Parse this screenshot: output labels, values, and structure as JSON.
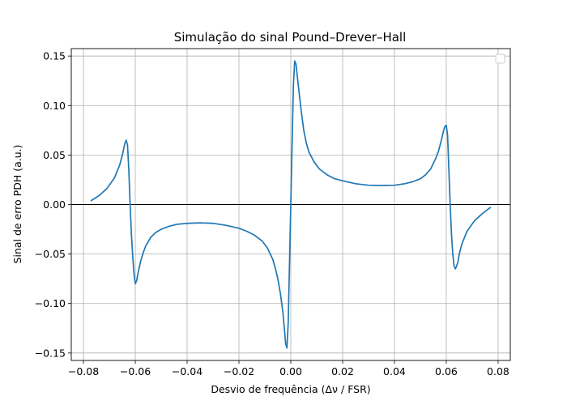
{
  "chart_data": {
    "type": "line",
    "title": "Simulação do sinal Pound–Drever–Hall",
    "xlabel": "Desvio de frequência (Δν / FSR)",
    "ylabel": "Sinal de erro PDH (a.u.)",
    "xlim": [
      -0.0847,
      0.0847
    ],
    "ylim": [
      -0.1575,
      0.1575
    ],
    "grid": true,
    "legend": "top-right",
    "legend_entries": [],
    "zero_line": true,
    "series_color": "#1f77b4",
    "x_ticks": [
      {
        "value": -0.08,
        "label": "−0.08"
      },
      {
        "value": -0.06,
        "label": "−0.06"
      },
      {
        "value": -0.04,
        "label": "−0.04"
      },
      {
        "value": -0.02,
        "label": "−0.02"
      },
      {
        "value": 0.0,
        "label": "0.00"
      },
      {
        "value": 0.02,
        "label": "0.02"
      },
      {
        "value": 0.04,
        "label": "0.04"
      },
      {
        "value": 0.06,
        "label": "0.06"
      },
      {
        "value": 0.08,
        "label": "0.08"
      }
    ],
    "y_ticks": [
      {
        "value": -0.15,
        "label": "−0.15"
      },
      {
        "value": -0.1,
        "label": "−0.10"
      },
      {
        "value": -0.05,
        "label": "−0.05"
      },
      {
        "value": 0.0,
        "label": "0.00"
      },
      {
        "value": 0.05,
        "label": "0.05"
      },
      {
        "value": 0.1,
        "label": "0.10"
      },
      {
        "value": 0.15,
        "label": "0.15"
      }
    ],
    "series": [
      {
        "x": [
          -0.077,
          -0.074,
          -0.071,
          -0.068,
          -0.066,
          -0.065,
          -0.0645,
          -0.064,
          -0.0635,
          -0.063,
          -0.0625,
          -0.062,
          -0.0615,
          -0.061,
          -0.0605,
          -0.06,
          -0.0595,
          -0.059,
          -0.058,
          -0.057,
          -0.056,
          -0.054,
          -0.052,
          -0.05,
          -0.047,
          -0.044,
          -0.04,
          -0.035,
          -0.03,
          -0.025,
          -0.02,
          -0.017,
          -0.014,
          -0.011,
          -0.009,
          -0.007,
          -0.006,
          -0.005,
          -0.004,
          -0.003,
          -0.0025,
          -0.002,
          -0.0015,
          -0.001,
          -0.0005,
          0.0,
          0.0005,
          0.001,
          0.0015,
          0.002,
          0.0025,
          0.003,
          0.004,
          0.005,
          0.006,
          0.007,
          0.009,
          0.011,
          0.014,
          0.017,
          0.02,
          0.025,
          0.03,
          0.035,
          0.04,
          0.044,
          0.047,
          0.05,
          0.052,
          0.054,
          0.056,
          0.057,
          0.058,
          0.059,
          0.0595,
          0.06,
          0.0605,
          0.061,
          0.0615,
          0.062,
          0.0625,
          0.063,
          0.0635,
          0.064,
          0.0645,
          0.065,
          0.066,
          0.068,
          0.071,
          0.074,
          0.077
        ],
        "y": [
          0.004,
          0.009,
          0.016,
          0.027,
          0.04,
          0.05,
          0.056,
          0.062,
          0.065,
          0.06,
          0.035,
          0.0,
          -0.03,
          -0.052,
          -0.07,
          -0.08,
          -0.077,
          -0.07,
          -0.058,
          -0.049,
          -0.042,
          -0.033,
          -0.028,
          -0.025,
          -0.022,
          -0.02,
          -0.019,
          -0.0185,
          -0.019,
          -0.021,
          -0.024,
          -0.027,
          -0.031,
          -0.037,
          -0.044,
          -0.055,
          -0.064,
          -0.075,
          -0.09,
          -0.11,
          -0.125,
          -0.14,
          -0.145,
          -0.12,
          -0.06,
          0.0,
          0.06,
          0.12,
          0.145,
          0.142,
          0.13,
          0.118,
          0.095,
          0.075,
          0.062,
          0.053,
          0.043,
          0.036,
          0.03,
          0.026,
          0.024,
          0.021,
          0.0195,
          0.0192,
          0.0195,
          0.021,
          0.023,
          0.026,
          0.03,
          0.036,
          0.047,
          0.054,
          0.064,
          0.075,
          0.079,
          0.08,
          0.07,
          0.035,
          0.0,
          -0.03,
          -0.05,
          -0.062,
          -0.065,
          -0.062,
          -0.058,
          -0.05,
          -0.04,
          -0.027,
          -0.016,
          -0.009,
          -0.003
        ]
      }
    ]
  }
}
